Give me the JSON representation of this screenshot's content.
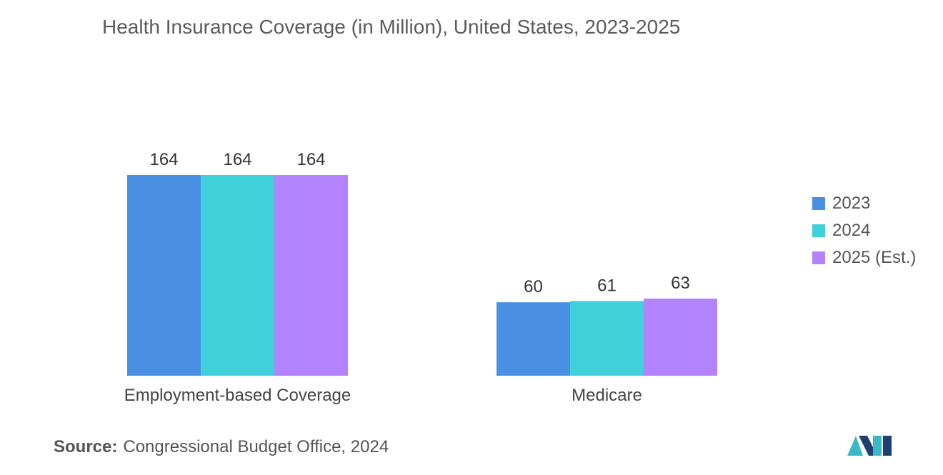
{
  "title": "Health Insurance Coverage (in Million), United States, 2023-2025",
  "chart_data": {
    "type": "bar",
    "title": "Health Insurance Coverage (in Million), United States, 2023-2025",
    "categories": [
      "Employment-based Coverage",
      "Medicare"
    ],
    "series": [
      {
        "name": "2023",
        "values": [
          164,
          60
        ],
        "color": "#4a90e2"
      },
      {
        "name": "2024",
        "values": [
          164,
          61
        ],
        "color": "#40d0d9"
      },
      {
        "name": "2025 (Est.)",
        "values": [
          164,
          63
        ],
        "color": "#b283fd"
      }
    ],
    "xlabel": "",
    "ylabel": "",
    "ylim": [
      0,
      164
    ],
    "grid": false,
    "legend": "right"
  },
  "legend": {
    "items": [
      {
        "label": "2023",
        "color": "#4a90e2"
      },
      {
        "label": "2024",
        "color": "#40d0d9"
      },
      {
        "label": "2025 (Est.)",
        "color": "#b283fd"
      }
    ]
  },
  "source": {
    "label": "Source:",
    "text": "Congressional Budget Office, 2024"
  },
  "logo": {
    "icon": "mordor-intelligence-logo-icon",
    "colors": [
      "#1f3f6e",
      "#3ab8c8"
    ]
  }
}
